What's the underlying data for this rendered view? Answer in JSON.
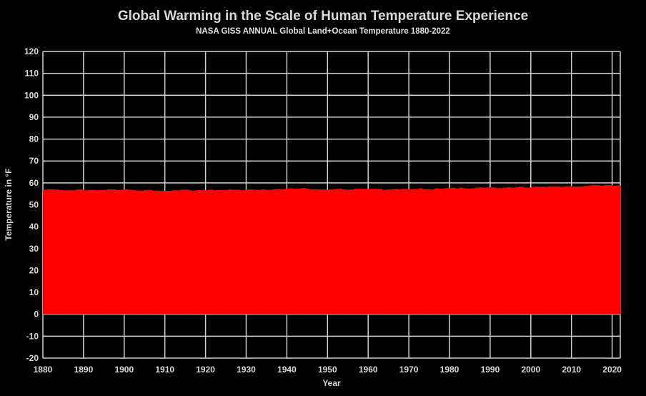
{
  "chart_data": {
    "type": "area",
    "title": "Global Warming in the Scale of Human Temperature Experience",
    "subtitle": "NASA GISS ANNUAL Global Land+Ocean Temperature 1880-2022",
    "xlabel": "Year",
    "ylabel": "Temperature in °F",
    "xlim": [
      1880,
      2022
    ],
    "ylim": [
      -20,
      120
    ],
    "x_ticks": [
      "1880",
      "1890",
      "1900",
      "1910",
      "1920",
      "1930",
      "1940",
      "1950",
      "1960",
      "1970",
      "1980",
      "1990",
      "2000",
      "2010",
      "2020"
    ],
    "y_ticks": [
      "-20",
      "-10",
      "0",
      "10",
      "20",
      "30",
      "40",
      "50",
      "60",
      "70",
      "80",
      "90",
      "100",
      "110",
      "120"
    ],
    "grid": true,
    "fill_color": "#ff0000",
    "x_start": 1880,
    "values": [
      56.9,
      57.1,
      57.0,
      56.9,
      56.7,
      56.6,
      56.6,
      56.6,
      56.9,
      57.0,
      56.6,
      56.8,
      56.7,
      56.6,
      56.7,
      56.8,
      57.0,
      57.0,
      56.7,
      56.9,
      57.1,
      56.9,
      56.7,
      56.5,
      56.4,
      56.7,
      56.8,
      56.5,
      56.4,
      56.3,
      56.4,
      56.4,
      56.6,
      56.6,
      56.9,
      56.9,
      56.6,
      56.4,
      56.7,
      56.7,
      56.7,
      56.9,
      56.7,
      56.7,
      56.7,
      56.8,
      57.0,
      56.8,
      56.8,
      56.6,
      56.9,
      57.0,
      56.9,
      56.7,
      57.0,
      56.8,
      56.9,
      57.1,
      57.2,
      57.2,
      57.4,
      57.5,
      57.3,
      57.4,
      57.6,
      57.4,
      57.1,
      57.1,
      57.0,
      57.0,
      56.9,
      57.1,
      57.2,
      57.3,
      57.0,
      56.9,
      56.9,
      57.3,
      57.3,
      57.3,
      57.2,
      57.3,
      57.3,
      57.3,
      56.8,
      57.0,
      57.1,
      57.2,
      57.1,
      57.3,
      57.2,
      57.1,
      57.2,
      57.5,
      57.1,
      57.2,
      57.0,
      57.5,
      57.3,
      57.5,
      57.7,
      57.8,
      57.5,
      57.8,
      57.5,
      57.4,
      57.5,
      57.8,
      57.9,
      57.7,
      58.0,
      57.9,
      57.6,
      57.6,
      57.8,
      58.0,
      57.8,
      58.0,
      58.3,
      57.9,
      57.9,
      58.2,
      58.3,
      58.3,
      58.2,
      58.4,
      58.4,
      58.4,
      58.2,
      58.4,
      58.5,
      58.3,
      58.4,
      58.4,
      58.6,
      58.8,
      59.0,
      58.9,
      58.7,
      59.0,
      59.0,
      58.7,
      58.8
    ]
  }
}
